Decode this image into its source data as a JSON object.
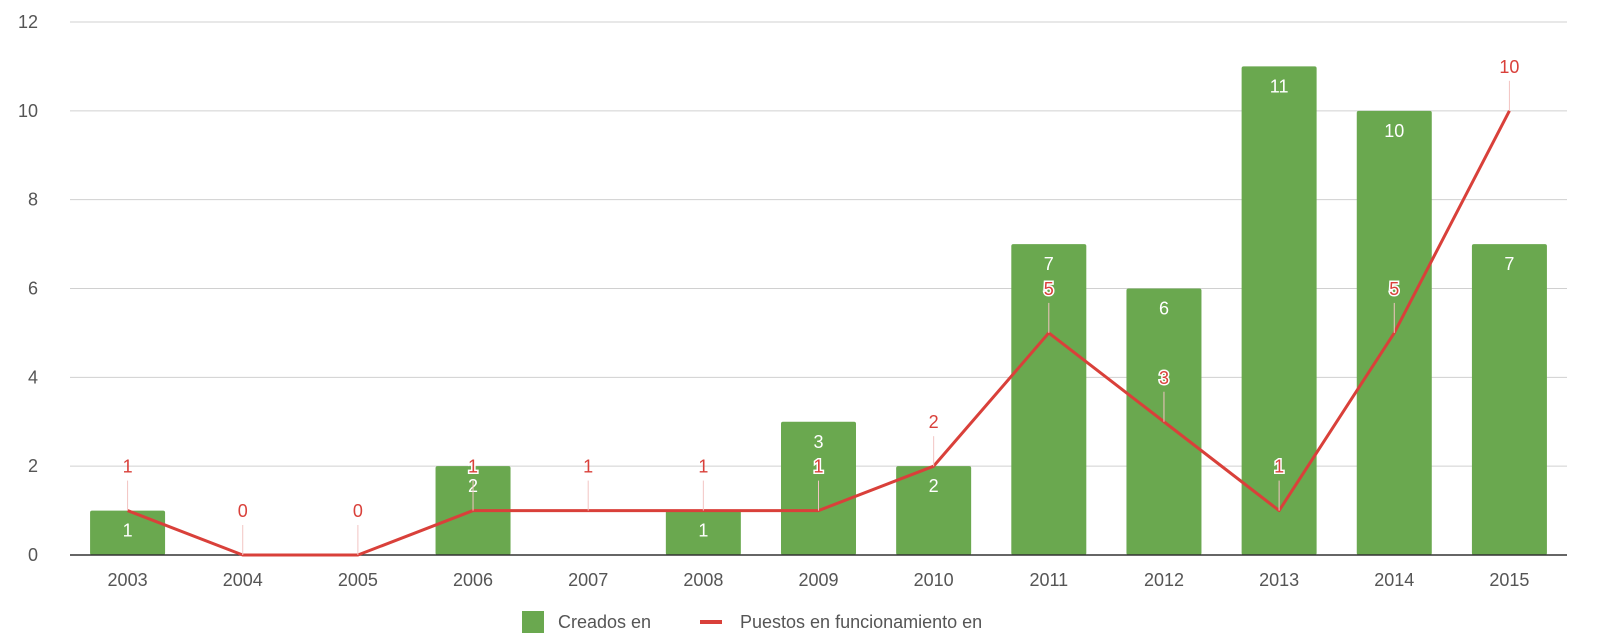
{
  "chart_data": {
    "type": "bar",
    "categories": [
      "2003",
      "2004",
      "2005",
      "2006",
      "2007",
      "2008",
      "2009",
      "2010",
      "2011",
      "2012",
      "2013",
      "2014",
      "2015"
    ],
    "ylim": [
      0,
      12
    ],
    "yticks": [
      0,
      2,
      4,
      6,
      8,
      10,
      12
    ],
    "grid": true,
    "legend_position": "bottom",
    "series": [
      {
        "name": "Creados en",
        "type": "bar",
        "color": "#6aa84f",
        "values": [
          1,
          null,
          null,
          2,
          null,
          1,
          3,
          2,
          7,
          6,
          11,
          10,
          7
        ]
      },
      {
        "name": "Puestos en funcionamiento en",
        "type": "line",
        "color": "#d9403a",
        "values": [
          1,
          0,
          0,
          1,
          1,
          1,
          1,
          2,
          5,
          3,
          1,
          5,
          10
        ]
      }
    ]
  }
}
